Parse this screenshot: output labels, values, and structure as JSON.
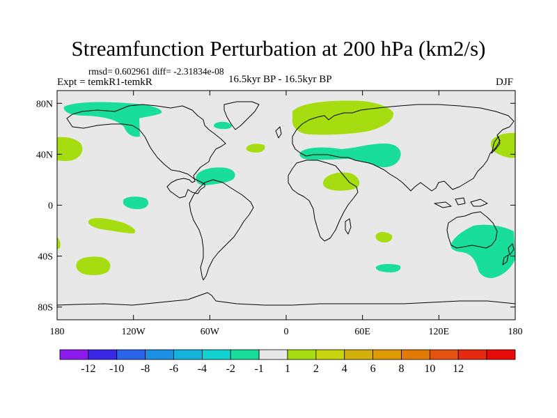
{
  "title": "Streamfunction Perturbation at 200 hPa (km2/s)",
  "stats": "rmsd= 0.602961 diff= -2.31834e-08",
  "experiment": "Expt = temkR1-temkR",
  "period": "16.5kyr BP - 16.5kyr BP",
  "season": "DJF",
  "map": {
    "projection": "cylindrical equidistant",
    "lon_range": [
      -180,
      180
    ],
    "lat_range": [
      -90,
      90
    ],
    "lat_ticks": [
      {
        "value": 80,
        "label": "80N"
      },
      {
        "value": 40,
        "label": "40N"
      },
      {
        "value": 0,
        "label": "0"
      },
      {
        "value": -40,
        "label": "40S"
      },
      {
        "value": -80,
        "label": "80S"
      }
    ],
    "lon_ticks": [
      {
        "value": -180,
        "label": "180"
      },
      {
        "value": -120,
        "label": "120W"
      },
      {
        "value": -60,
        "label": "60W"
      },
      {
        "value": 0,
        "label": "0"
      },
      {
        "value": 60,
        "label": "60E"
      },
      {
        "value": 120,
        "label": "120E"
      },
      {
        "value": 180,
        "label": "180"
      }
    ],
    "background_color": "#e8e8e8",
    "anomalies": [
      {
        "name": "n-pacific-neg",
        "sign": "neg",
        "color": "#19dd9a",
        "lon": -135,
        "lat": 72
      },
      {
        "name": "greenland-neg-small",
        "sign": "neg",
        "color": "#19dd9a",
        "lon": -48,
        "lat": 64
      },
      {
        "name": "n-europe-pos",
        "sign": "pos",
        "color": "#a6dd10",
        "lon": 30,
        "lat": 72
      },
      {
        "name": "mediterranean-neg",
        "sign": "neg",
        "color": "#19dd9a",
        "lon": 60,
        "lat": 41
      },
      {
        "name": "n-atlantic-pos-small",
        "sign": "pos",
        "color": "#a6dd10",
        "lon": -25,
        "lat": 46
      },
      {
        "name": "ne-pacific-pos",
        "sign": "pos",
        "color": "#a6dd10",
        "lon": -170,
        "lat": 45
      },
      {
        "name": "nw-pacific-pos",
        "sign": "pos",
        "color": "#a6dd10",
        "lon": 170,
        "lat": 48
      },
      {
        "name": "caribbean-neg",
        "sign": "neg",
        "color": "#19dd9a",
        "lon": -63,
        "lat": 22
      },
      {
        "name": "arabia-pos",
        "sign": "pos",
        "color": "#a6dd10",
        "lon": 44,
        "lat": 18
      },
      {
        "name": "e-pacific-neg",
        "sign": "neg",
        "color": "#19dd9a",
        "lon": -116,
        "lat": 3
      },
      {
        "name": "s-pacific-pos",
        "sign": "pos",
        "color": "#a6dd10",
        "lon": -140,
        "lat": -14
      },
      {
        "name": "s-pacific-pos-2",
        "sign": "pos",
        "color": "#a6dd10",
        "lon": -150,
        "lat": -45
      },
      {
        "name": "indian-ocean-pos",
        "sign": "pos",
        "color": "#a6dd10",
        "lon": 75,
        "lat": -22
      },
      {
        "name": "s-indian-neg",
        "sign": "neg",
        "color": "#19dd9a",
        "lon": 77,
        "lat": -48
      },
      {
        "name": "australia-neg",
        "sign": "neg",
        "color": "#19dd9a",
        "lon": 150,
        "lat": -30
      }
    ]
  },
  "colorbar": {
    "colors": [
      "#8c1aec",
      "#3a28e8",
      "#2a64e8",
      "#1a8fe4",
      "#14b4dc",
      "#12d2d2",
      "#19dd9a",
      "#e8e8e8",
      "#a6dd10",
      "#c8d40e",
      "#d6b00a",
      "#e09a06",
      "#e27a06",
      "#e65010",
      "#e62a10",
      "#ea0a0a"
    ],
    "labels": [
      "-12",
      "-10",
      "-8",
      "-6",
      "-4",
      "-2",
      "-1",
      "1",
      "2",
      "4",
      "6",
      "8",
      "10",
      "12"
    ]
  }
}
